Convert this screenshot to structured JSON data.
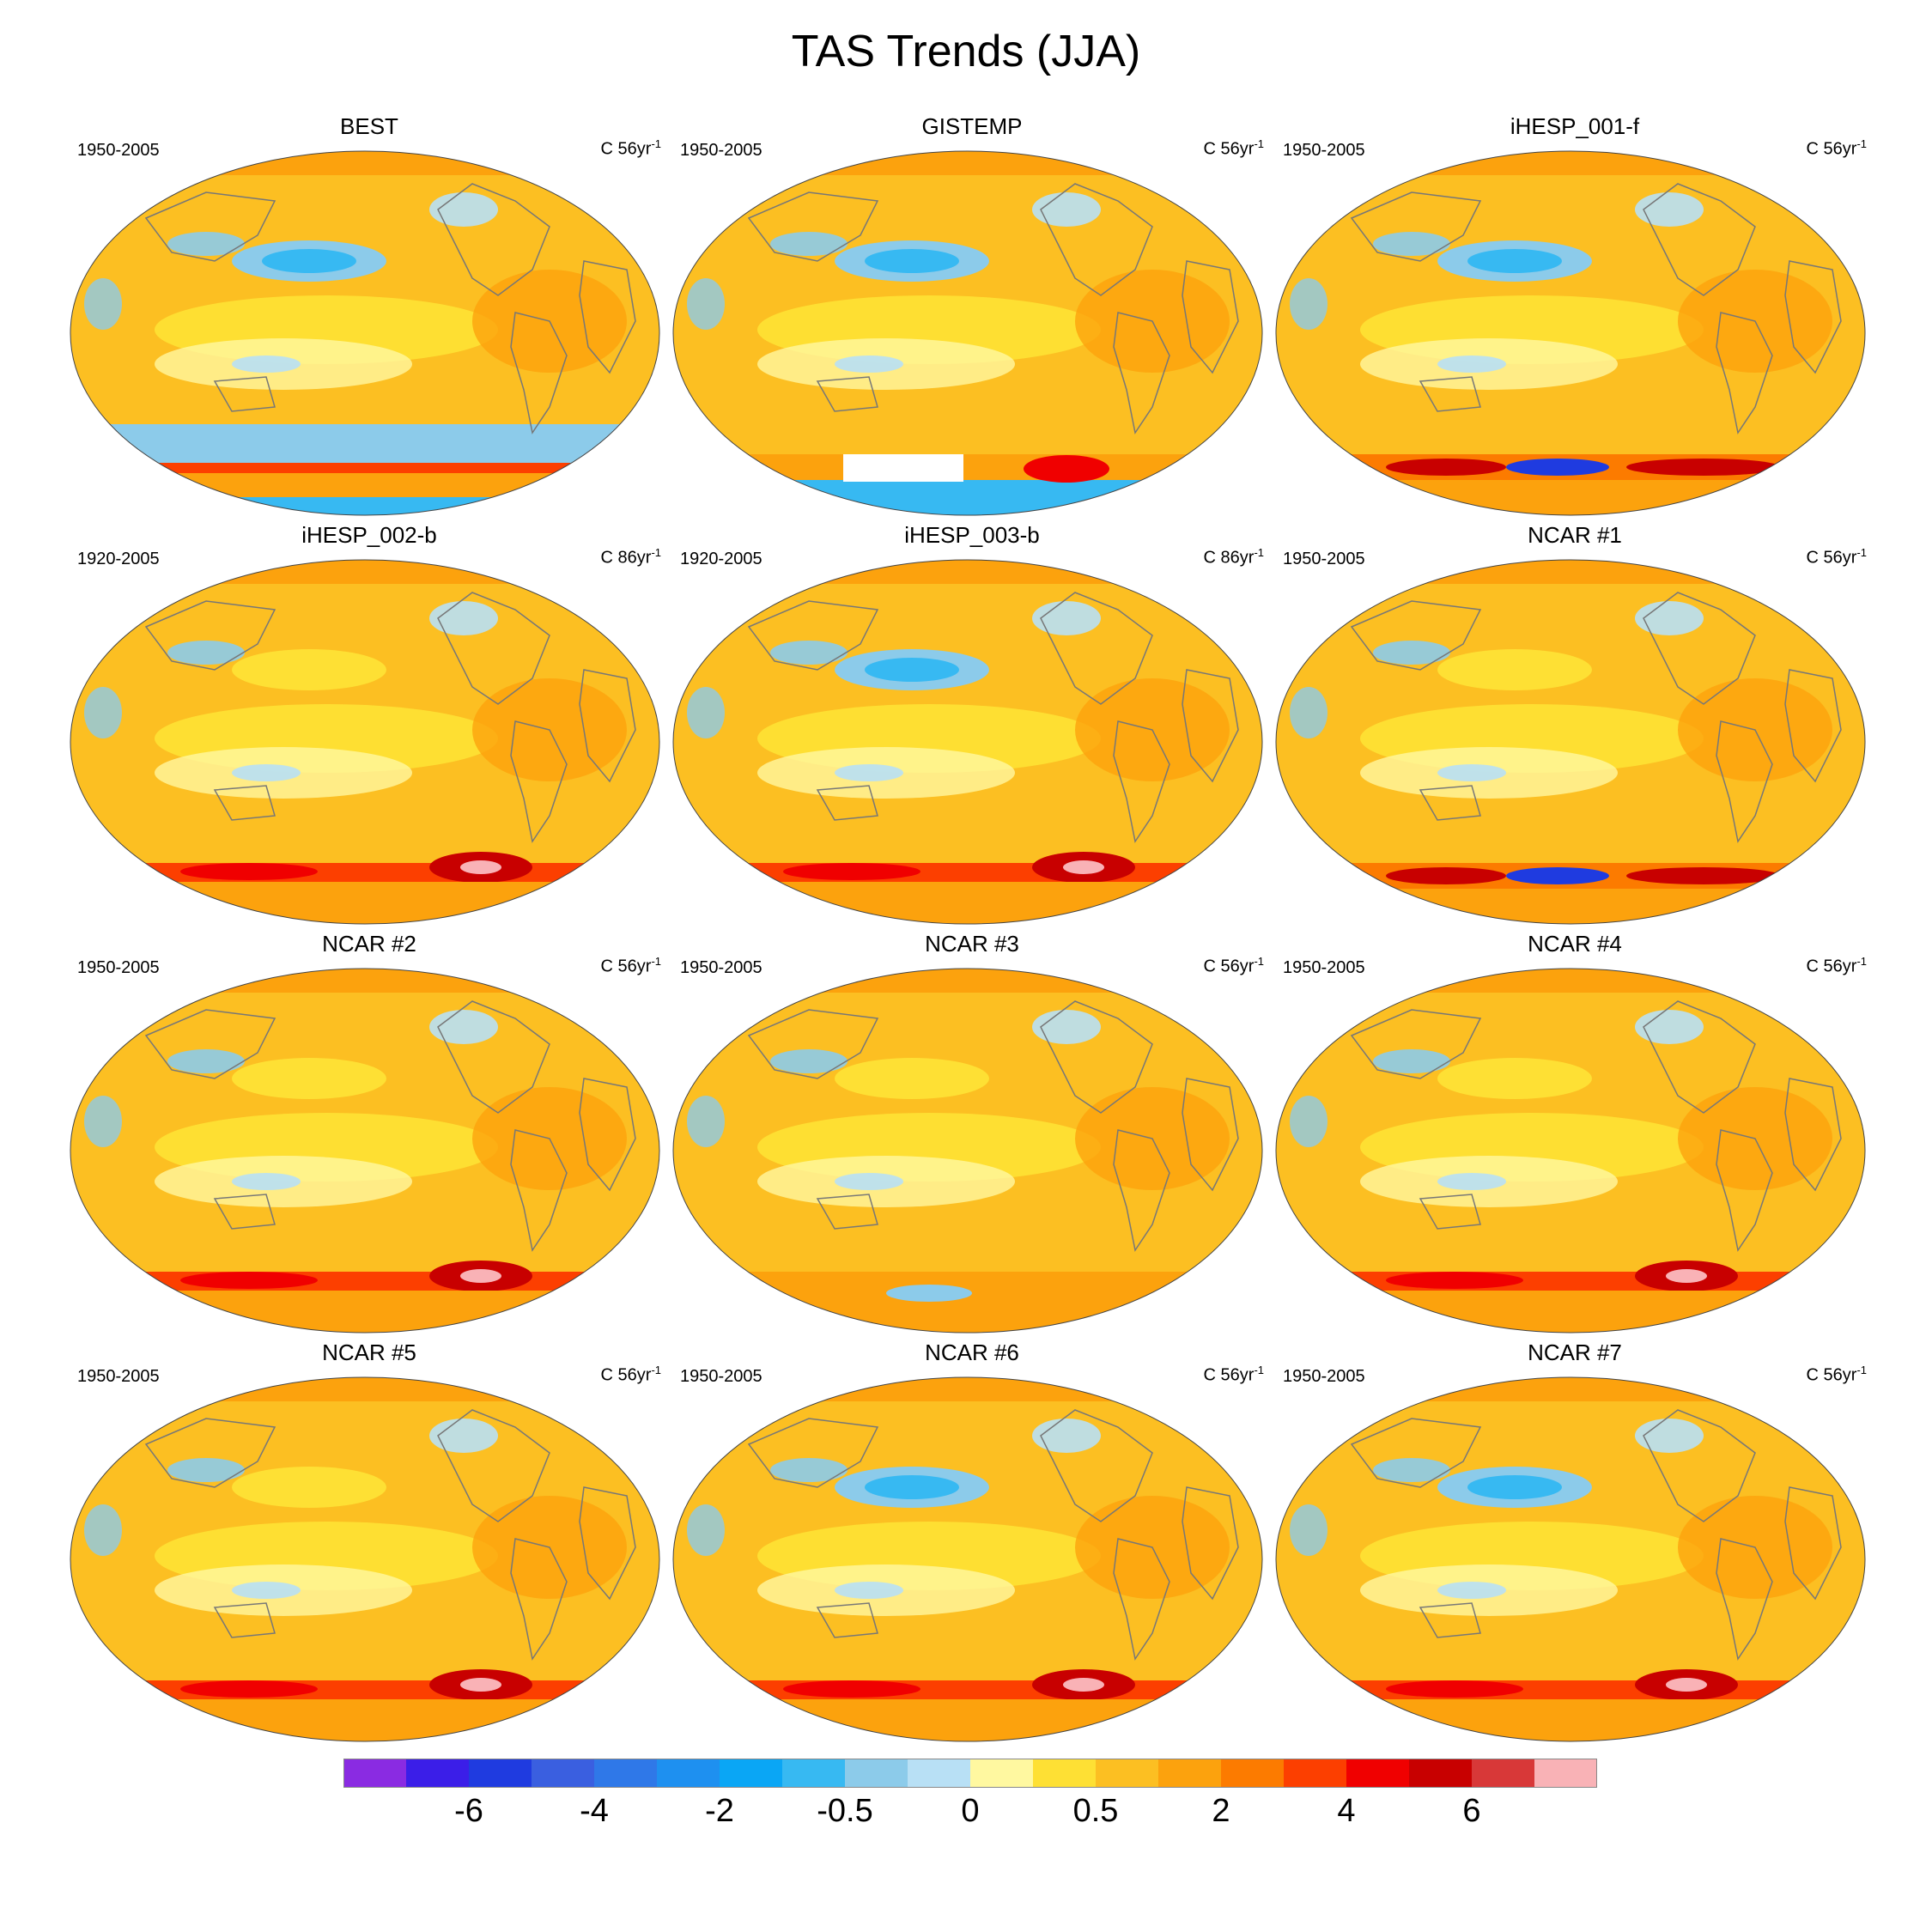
{
  "title": "TAS Trends (JJA)",
  "panels": [
    {
      "title": "BEST",
      "period": "1950-2005",
      "units_prefix": "C 56yr",
      "units_exp": "-1",
      "antarctic": "cool",
      "pacific": "cool"
    },
    {
      "title": "GISTEMP",
      "period": "1950-2005",
      "units_prefix": "C 56yr",
      "units_exp": "-1",
      "antarctic": "missing",
      "pacific": "cool"
    },
    {
      "title": "iHESP_001-f",
      "period": "1950-2005",
      "units_prefix": "C 56yr",
      "units_exp": "-1",
      "antarctic": "mixed",
      "pacific": "cool"
    },
    {
      "title": "iHESP_002-b",
      "period": "1920-2005",
      "units_prefix": "C 86yr",
      "units_exp": "-1",
      "antarctic": "hot",
      "pacific": "warm"
    },
    {
      "title": "iHESP_003-b",
      "period": "1920-2005",
      "units_prefix": "C 86yr",
      "units_exp": "-1",
      "antarctic": "hot",
      "pacific": "cool"
    },
    {
      "title": "NCAR #1",
      "period": "1950-2005",
      "units_prefix": "C 56yr",
      "units_exp": "-1",
      "antarctic": "mixed",
      "pacific": "warm"
    },
    {
      "title": "NCAR #2",
      "period": "1950-2005",
      "units_prefix": "C 56yr",
      "units_exp": "-1",
      "antarctic": "hot",
      "pacific": "warm"
    },
    {
      "title": "NCAR #3",
      "period": "1950-2005",
      "units_prefix": "C 56yr",
      "units_exp": "-1",
      "antarctic": "warm",
      "pacific": "warm"
    },
    {
      "title": "NCAR #4",
      "period": "1950-2005",
      "units_prefix": "C 56yr",
      "units_exp": "-1",
      "antarctic": "hot",
      "pacific": "warm"
    },
    {
      "title": "NCAR #5",
      "period": "1950-2005",
      "units_prefix": "C 56yr",
      "units_exp": "-1",
      "antarctic": "hot",
      "pacific": "warm"
    },
    {
      "title": "NCAR #6",
      "period": "1950-2005",
      "units_prefix": "C 56yr",
      "units_exp": "-1",
      "antarctic": "hot",
      "pacific": "cool"
    },
    {
      "title": "NCAR #7",
      "period": "1950-2005",
      "units_prefix": "C 56yr",
      "units_exp": "-1",
      "antarctic": "hot",
      "pacific": "cool"
    }
  ],
  "colorbar": {
    "colors": [
      "#8a2be2",
      "#3b1ee8",
      "#1f3be0",
      "#3a5fe0",
      "#2f78e8",
      "#1e90f0",
      "#0aa6f5",
      "#37b9f2",
      "#8ccbea",
      "#b8e0f5",
      "#fff8a0",
      "#fee034",
      "#fcbf22",
      "#fca20d",
      "#fc7b00",
      "#fc3f00",
      "#f00000",
      "#c80000",
      "#d83838",
      "#f9b2b6"
    ],
    "labels": [
      "-6",
      "-4",
      "-2",
      "-0.5",
      "0",
      "0.5",
      "2",
      "4",
      "6"
    ]
  }
}
